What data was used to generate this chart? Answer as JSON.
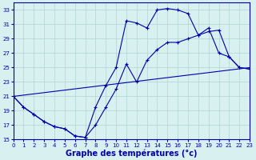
{
  "background_color": "#d8f0f0",
  "grid_color": "#b0d4d4",
  "line_color": "#0000aa",
  "xlabel": "Graphe des températures (°c)",
  "xlabel_fontsize": 7.0,
  "ylim": [
    15,
    34
  ],
  "xlim": [
    0,
    23
  ],
  "yticks": [
    15,
    17,
    19,
    21,
    23,
    25,
    27,
    29,
    31,
    33
  ],
  "xticks": [
    0,
    1,
    2,
    3,
    4,
    5,
    6,
    7,
    8,
    9,
    10,
    11,
    12,
    13,
    14,
    15,
    16,
    17,
    18,
    19,
    20,
    21,
    22,
    23
  ],
  "series": [
    {
      "x": [
        0,
        1,
        2,
        3,
        4,
        5,
        6,
        7,
        8,
        9,
        10,
        11,
        12,
        13,
        14,
        15,
        16,
        17,
        18,
        19,
        20,
        21,
        22,
        23
      ],
      "y": [
        21,
        19.5,
        18.5,
        17.5,
        16.8,
        16.5,
        15.5,
        15.3,
        19.5,
        22.5,
        25.0,
        31.5,
        31.2,
        30.5,
        33.0,
        33.2,
        33.0,
        32.5,
        29.5,
        30.5,
        27.0,
        26.5,
        25.0,
        24.8
      ],
      "markers": true
    },
    {
      "x": [
        0,
        1,
        2,
        3,
        4,
        5,
        6,
        7,
        8,
        9,
        10,
        11,
        12,
        13,
        14,
        15,
        16,
        17,
        18,
        19,
        20,
        21,
        22,
        23
      ],
      "y": [
        21,
        19.5,
        18.5,
        17.5,
        16.8,
        16.5,
        15.5,
        15.3,
        17.0,
        19.5,
        22.0,
        25.5,
        23.0,
        26.0,
        27.5,
        28.5,
        28.5,
        29.0,
        29.5,
        30.0,
        30.2,
        26.5,
        25.0,
        24.8
      ],
      "markers": true
    },
    {
      "x": [
        0,
        23
      ],
      "y": [
        21,
        25.0
      ],
      "markers": false
    }
  ]
}
